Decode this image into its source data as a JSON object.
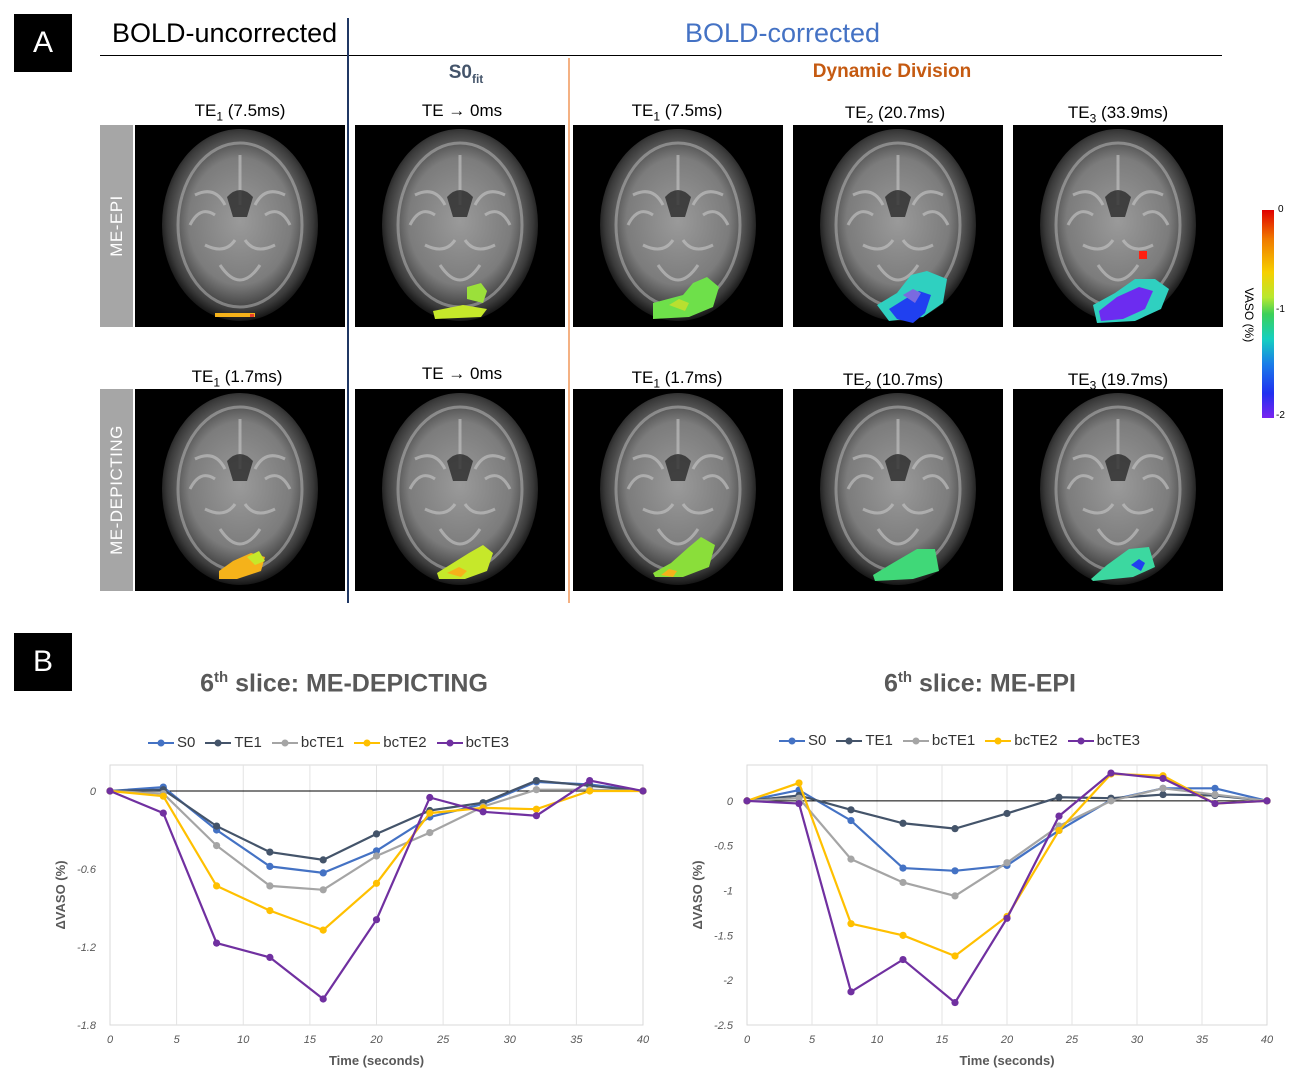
{
  "panel_a": {
    "letter": "A",
    "header_uncorrected": "BOLD-uncorrected",
    "header_corrected": "BOLD-corrected",
    "sub_s0": "S0",
    "sub_s0_subscript": "fit",
    "sub_dynamic": "Dynamic Division",
    "rows": [
      {
        "label": "ME-EPI",
        "columns": [
          {
            "te_prefix": "TE",
            "te_sub": "1",
            "te_value": " (7.5ms)"
          },
          {
            "te_prefix": "TE → 0ms",
            "te_sub": "",
            "te_value": ""
          },
          {
            "te_prefix": "TE",
            "te_sub": "1",
            "te_value": " (7.5ms)"
          },
          {
            "te_prefix": "TE",
            "te_sub": "2",
            "te_value": " (20.7ms)"
          },
          {
            "te_prefix": "TE",
            "te_sub": "3",
            "te_value": " (33.9ms)"
          }
        ]
      },
      {
        "label": "ME-DEPICTING",
        "columns": [
          {
            "te_prefix": "TE",
            "te_sub": "1",
            "te_value": " (1.7ms)"
          },
          {
            "te_prefix": "TE → 0ms",
            "te_sub": "",
            "te_value": ""
          },
          {
            "te_prefix": "TE",
            "te_sub": "1",
            "te_value": " (1.7ms)"
          },
          {
            "te_prefix": "TE",
            "te_sub": "2",
            "te_value": " (10.7ms)"
          },
          {
            "te_prefix": "TE",
            "te_sub": "3",
            "te_value": " (19.7ms)"
          }
        ]
      }
    ],
    "colorbar": {
      "title": "VASO (%)",
      "ticks": [
        "0",
        "-1",
        "-2"
      ]
    }
  },
  "panel_b": {
    "letter": "B",
    "colors": {
      "S0": "#4472c4",
      "TE1": "#44546a",
      "bcTE1": "#a5a5a5",
      "bcTE2": "#ffc000",
      "bcTE3": "#7030a0"
    }
  },
  "chart_data": [
    {
      "type": "line",
      "title_prefix": "6",
      "title_sup": "th",
      "title_rest": " slice: ME-DEPICTING",
      "xlabel": "Time (seconds)",
      "ylabel": "ΔVASO (%)",
      "x": [
        0,
        4,
        8,
        12,
        16,
        20,
        24,
        28,
        32,
        36,
        40
      ],
      "xlim": [
        0,
        40
      ],
      "xticks": [
        "0",
        "5",
        "10",
        "15",
        "20",
        "25",
        "30",
        "35",
        "40"
      ],
      "xtick_values": [
        0,
        5,
        10,
        15,
        20,
        25,
        30,
        35,
        40
      ],
      "ylim": [
        -1.8,
        0.2
      ],
      "yticks": [
        "0",
        "-0.6",
        "-1.2",
        "-1.8"
      ],
      "ytick_values": [
        0,
        -0.6,
        -1.2,
        -1.8
      ],
      "series": [
        {
          "name": "S0",
          "values": [
            0,
            0.03,
            -0.3,
            -0.58,
            -0.63,
            -0.46,
            -0.2,
            -0.1,
            0.07,
            0.05,
            0
          ]
        },
        {
          "name": "TE1",
          "values": [
            0,
            0.01,
            -0.27,
            -0.47,
            -0.53,
            -0.33,
            -0.15,
            -0.09,
            0.08,
            0.04,
            0
          ]
        },
        {
          "name": "bcTE1",
          "values": [
            0,
            -0.02,
            -0.42,
            -0.73,
            -0.76,
            -0.5,
            -0.32,
            -0.12,
            0.01,
            0.01,
            0
          ]
        },
        {
          "name": "bcTE2",
          "values": [
            0,
            -0.04,
            -0.73,
            -0.92,
            -1.07,
            -0.71,
            -0.17,
            -0.13,
            -0.14,
            0,
            0
          ]
        },
        {
          "name": "bcTE3",
          "values": [
            0,
            -0.17,
            -1.17,
            -1.28,
            -1.6,
            -0.99,
            -0.05,
            -0.16,
            -0.19,
            0.08,
            0
          ]
        }
      ]
    },
    {
      "type": "line",
      "title_prefix": "6",
      "title_sup": "th",
      "title_rest": " slice: ME-EPI",
      "xlabel": "Time (seconds)",
      "ylabel": "ΔVASO (%)",
      "x": [
        0,
        4,
        8,
        12,
        16,
        20,
        24,
        28,
        32,
        36,
        40
      ],
      "xlim": [
        0,
        40
      ],
      "xticks": [
        "0",
        "5",
        "10",
        "15",
        "20",
        "25",
        "30",
        "35",
        "40"
      ],
      "xtick_values": [
        0,
        5,
        10,
        15,
        20,
        25,
        30,
        35,
        40
      ],
      "ylim": [
        -2.5,
        0.4
      ],
      "yticks": [
        "0",
        "-0.5",
        "-1",
        "-1.5",
        "-2",
        "-2.5"
      ],
      "ytick_values": [
        0,
        -0.5,
        -1,
        -1.5,
        -2,
        -2.5
      ],
      "series": [
        {
          "name": "S0",
          "values": [
            0,
            0.12,
            -0.22,
            -0.75,
            -0.78,
            -0.72,
            -0.33,
            0.01,
            0.14,
            0.14,
            0
          ]
        },
        {
          "name": "TE1",
          "values": [
            0,
            0.06,
            -0.1,
            -0.25,
            -0.31,
            -0.14,
            0.04,
            0.03,
            0.07,
            0.06,
            0
          ]
        },
        {
          "name": "bcTE1",
          "values": [
            0,
            0.03,
            -0.65,
            -0.91,
            -1.06,
            -0.69,
            -0.28,
            0.0,
            0.14,
            0.07,
            0
          ]
        },
        {
          "name": "bcTE2",
          "values": [
            0,
            0.2,
            -1.37,
            -1.5,
            -1.73,
            -1.29,
            -0.33,
            0.3,
            0.28,
            -0.03,
            0
          ]
        },
        {
          "name": "bcTE3",
          "values": [
            0,
            -0.03,
            -2.13,
            -1.77,
            -2.25,
            -1.31,
            -0.17,
            0.31,
            0.25,
            -0.03,
            0
          ]
        }
      ]
    }
  ]
}
